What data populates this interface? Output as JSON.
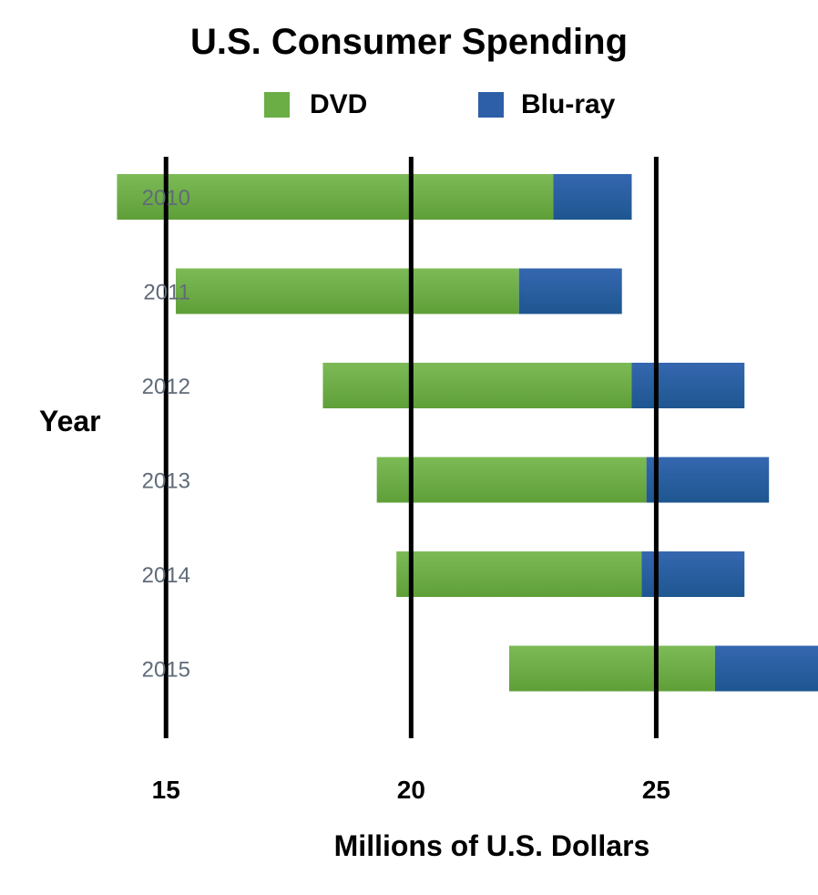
{
  "chart_data": {
    "type": "bar",
    "orientation": "horizontal",
    "stacked": true,
    "title": "U.S. Consumer Spending",
    "xlabel": "Millions of U.S. Dollars",
    "ylabel": "Year",
    "categories": [
      "2010",
      "2011",
      "2012",
      "2013",
      "2014",
      "2015"
    ],
    "x_ticks": [
      "15",
      "20",
      "25"
    ],
    "x_tick_values": [
      15,
      20,
      25
    ],
    "xlim": [
      13.1,
      28.3
    ],
    "series": [
      {
        "name": "DVD",
        "color": "#6aae45",
        "start": [
          14.0,
          15.2,
          18.2,
          19.3,
          19.7,
          22.0
        ],
        "end": [
          22.9,
          22.2,
          24.5,
          24.8,
          24.7,
          26.2
        ]
      },
      {
        "name": "Blu-ray",
        "color": "#2d5ea8",
        "start": [
          22.9,
          22.2,
          24.5,
          24.8,
          24.7,
          26.2
        ],
        "end": [
          24.5,
          24.3,
          26.8,
          27.3,
          26.8,
          28.3
        ]
      }
    ],
    "legend_position": "top",
    "grid": true
  }
}
